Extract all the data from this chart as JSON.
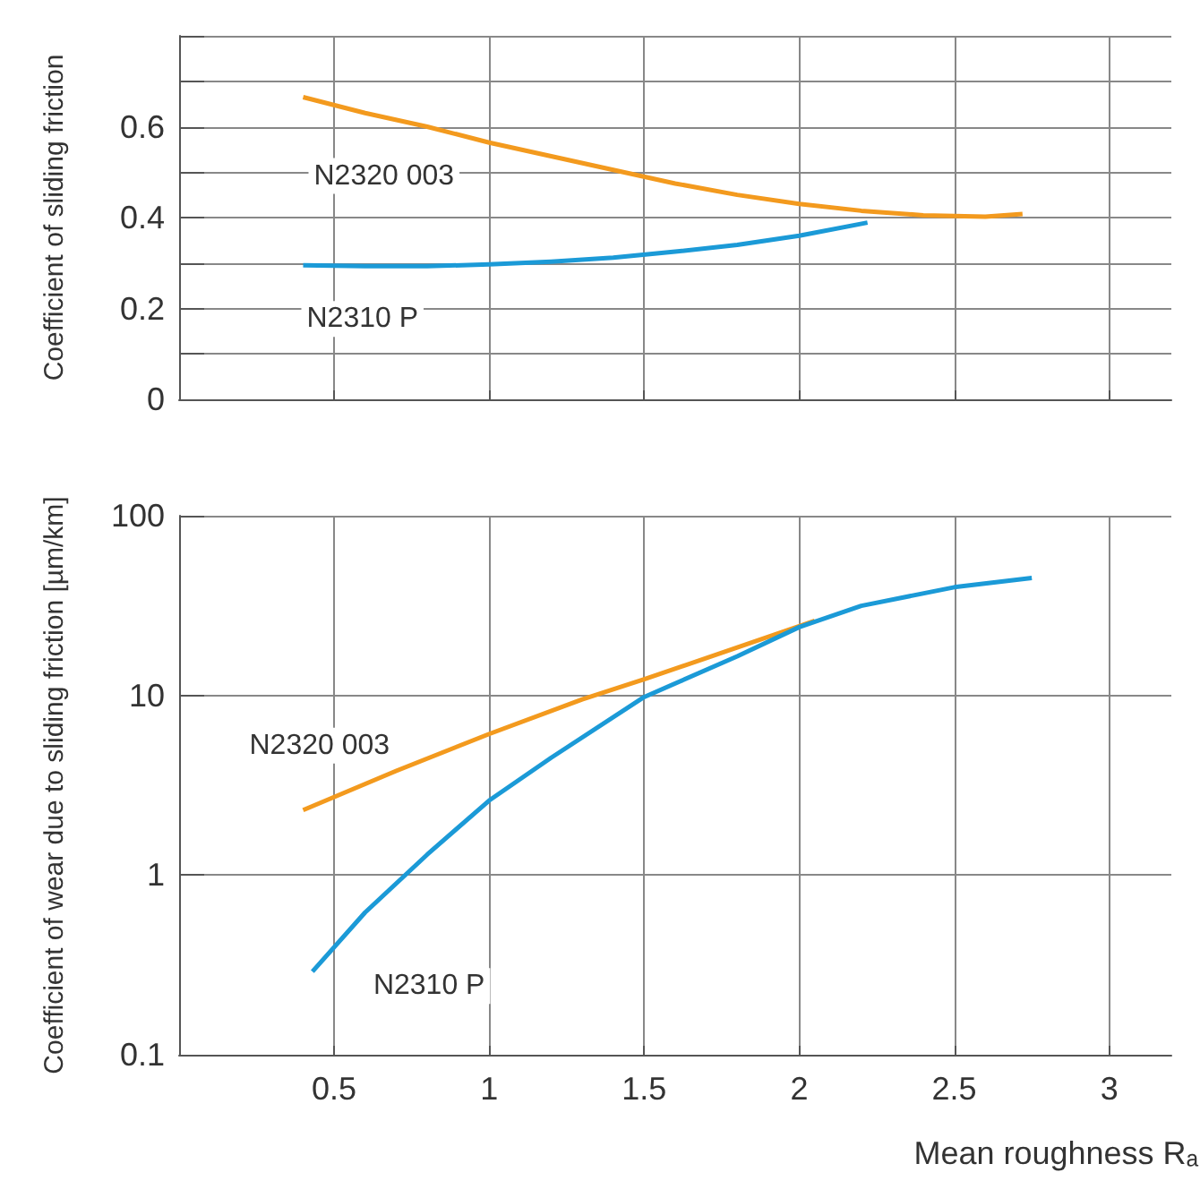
{
  "chart_data": [
    {
      "type": "line",
      "ylabel": "Coefficient of sliding friction",
      "xlim": [
        0,
        3.2
      ],
      "xticks": [
        0.5,
        1.0,
        1.5,
        2.0,
        2.5,
        3.0
      ],
      "ylim": [
        0,
        0.8
      ],
      "yticks": [
        0,
        {
          "value": 0.1,
          "label": null
        },
        0.2,
        {
          "value": 0.3,
          "label": null
        },
        0.4,
        {
          "value": 0.5,
          "label": null
        },
        0.6,
        {
          "value": 0.7,
          "label": null
        },
        {
          "value": 0.8,
          "label": null
        }
      ],
      "tick_labels": "y",
      "grid": true,
      "legend": false,
      "marker": "none",
      "line_style": "solid",
      "series": [
        {
          "name": "N2320 003",
          "color": "#f39a1e",
          "x": [
            0.4,
            0.6,
            0.8,
            1.0,
            1.2,
            1.4,
            1.6,
            1.8,
            2.0,
            2.2,
            2.4,
            2.6,
            2.72
          ],
          "values": [
            0.665,
            0.63,
            0.6,
            0.565,
            0.535,
            0.505,
            0.475,
            0.45,
            0.43,
            0.415,
            0.405,
            0.402,
            0.408
          ]
        },
        {
          "name": "N2310 P",
          "color": "#1b9ad7",
          "x": [
            0.4,
            0.6,
            0.8,
            1.0,
            1.2,
            1.4,
            1.6,
            1.8,
            2.0,
            2.22
          ],
          "values": [
            0.295,
            0.293,
            0.293,
            0.297,
            0.303,
            0.312,
            0.325,
            0.34,
            0.36,
            0.389
          ]
        }
      ]
    },
    {
      "type": "line",
      "xlabel": "Mean roughness Rₐ",
      "ylabel": "Coefficient of wear due to sliding friction [µm/km]",
      "xlim": [
        0,
        3.2
      ],
      "xticks": [
        0.5,
        1.0,
        1.5,
        2.0,
        2.5,
        3.0
      ],
      "ylim": [
        0.1,
        100
      ],
      "yticks": [
        0.1,
        1.0,
        10,
        100
      ],
      "log": "y",
      "grid": true,
      "legend": false,
      "marker": "none",
      "line_style": "solid",
      "series": [
        {
          "name": "N2320 003",
          "color": "#f39a1e",
          "x": [
            0.4,
            0.7,
            1.0,
            1.3,
            1.5,
            1.8,
            2.05
          ],
          "values": [
            2.3,
            3.8,
            6.1,
            9.5,
            12.3,
            18.5,
            26
          ]
        },
        {
          "name": "N2310 P",
          "color": "#1b9ad7",
          "x": [
            0.43,
            0.6,
            0.8,
            1.0,
            1.2,
            1.5,
            1.8,
            2.0,
            2.2,
            2.5,
            2.75
          ],
          "values": [
            0.29,
            0.62,
            1.3,
            2.6,
            4.5,
            9.8,
            16.5,
            24,
            31.5,
            40,
            45
          ]
        }
      ]
    }
  ]
}
